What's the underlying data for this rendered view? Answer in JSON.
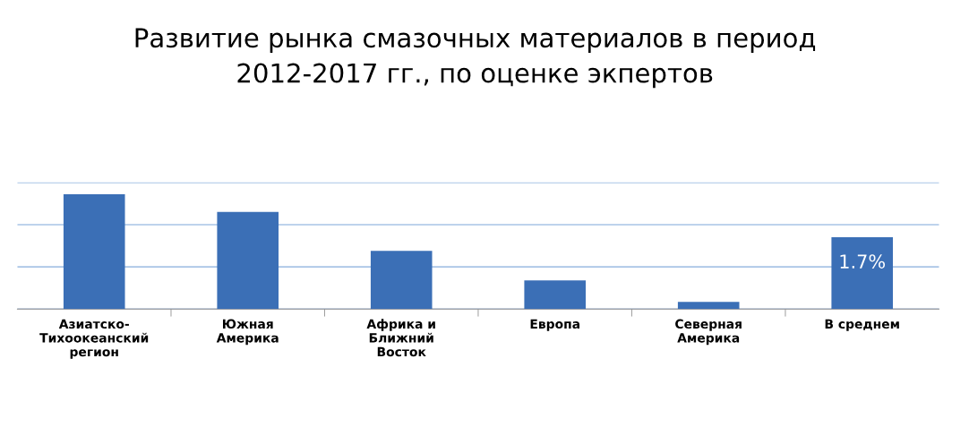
{
  "chart_data": {
    "type": "bar",
    "title": "Развитие рынка смазочных материалов в период\n2012-2017 гг., по оценке экпертов",
    "categories": [
      "Азиатско-\nТихоокеанский\nрегион",
      "Южная\nАмерика",
      "Африка и\nБлижний\nВосток",
      "Европа",
      "Северная\nАмерика",
      "В среднем"
    ],
    "values": [
      2.72,
      2.3,
      1.38,
      0.68,
      0.17,
      1.7
    ],
    "value_labels": [
      null,
      null,
      null,
      null,
      null,
      "1.7%"
    ],
    "color": "#3b6fb6",
    "ylim": [
      0,
      3
    ],
    "yticks": [
      {
        "value": 0,
        "label": null
      },
      {
        "value": 1,
        "label": null
      },
      {
        "value": 2,
        "label": null
      },
      {
        "value": 3,
        "label": null
      }
    ],
    "grid": "y",
    "tick_labels": "x"
  }
}
